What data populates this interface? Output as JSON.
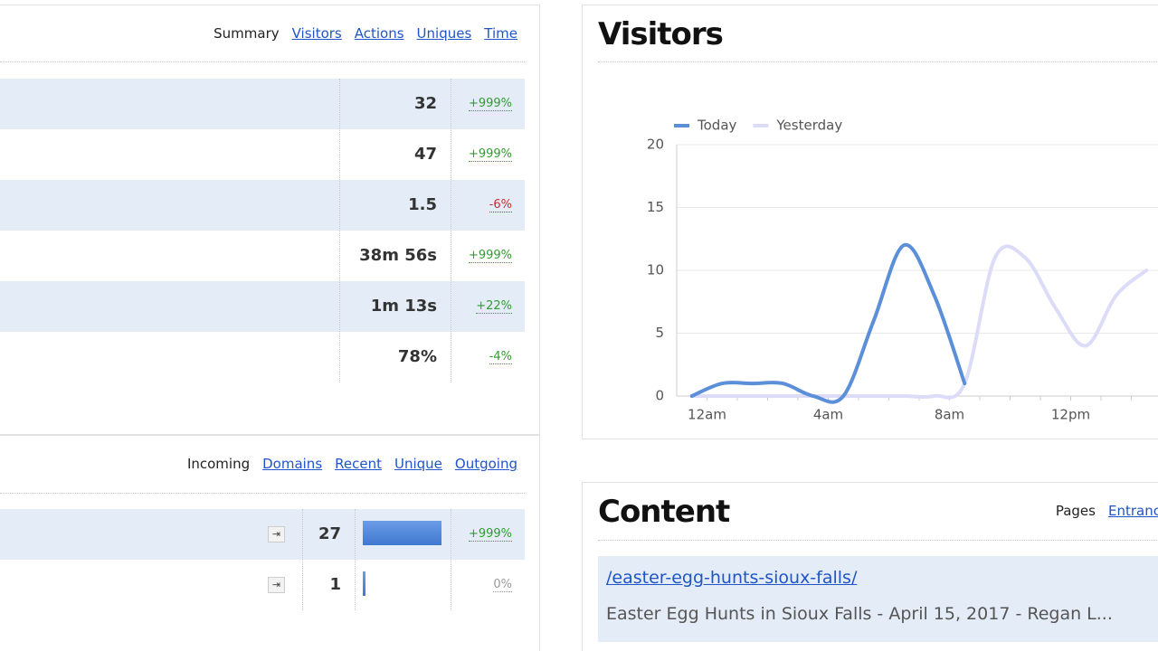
{
  "summary": {
    "tabs": [
      "Summary",
      "Visitors",
      "Actions",
      "Uniques",
      "Time"
    ],
    "rows": [
      {
        "value": 32,
        "change": "+999%",
        "color": "#2e9e2e"
      },
      {
        "value": 47,
        "change": "+999%",
        "color": "#2e9e2e"
      },
      {
        "value": 1.5,
        "change": "-6%",
        "color": "#cc2b2b"
      },
      {
        "value": "38m 56s",
        "change": "+999%",
        "color": "#2e9e2e"
      },
      {
        "value": "1m 13s",
        "change": "+22%",
        "color": "#2e9e2e"
      },
      {
        "value": "78%",
        "change": "-4%",
        "color": "#2e9e2e"
      }
    ]
  },
  "incoming": {
    "tabs": [
      "Incoming",
      "Domains",
      "Recent",
      "Unique",
      "Outgoing"
    ],
    "rows": [
      {
        "count": 27,
        "change": "+999%",
        "color": "#2e9e2e"
      },
      {
        "count": 1,
        "change": "0%",
        "color": "#999999"
      }
    ]
  },
  "chart_data": {
    "type": "line",
    "title": "Visitors",
    "categories": [
      "12am",
      null,
      null,
      null,
      "4am",
      null,
      null,
      null,
      "8am",
      null,
      null,
      null,
      "12pm",
      null,
      null,
      null
    ],
    "series": [
      {
        "name": "Today",
        "color": "#5b8fd9",
        "values": [
          0,
          1,
          1,
          1,
          0,
          0,
          6,
          12,
          8,
          1,
          null,
          null,
          null,
          null,
          null,
          null
        ]
      },
      {
        "name": "Yesterday",
        "color": "#dcdcf8",
        "values": [
          0,
          0,
          0,
          0,
          0,
          0,
          0,
          0,
          0,
          1,
          11,
          11,
          7,
          4,
          8,
          10
        ]
      }
    ],
    "ylim": [
      0,
      20
    ],
    "yticks": [
      0,
      5,
      10,
      15,
      20
    ],
    "grid": true,
    "legend": "top-left"
  },
  "content": {
    "title": "Content",
    "tabs": [
      "Pages",
      "Entrances"
    ],
    "rows": [
      {
        "link": "/easter-egg-hunts-sioux-falls/",
        "description": "Easter Egg Hunts in Sioux Falls - April 15, 2017 - Regan L..."
      }
    ]
  }
}
